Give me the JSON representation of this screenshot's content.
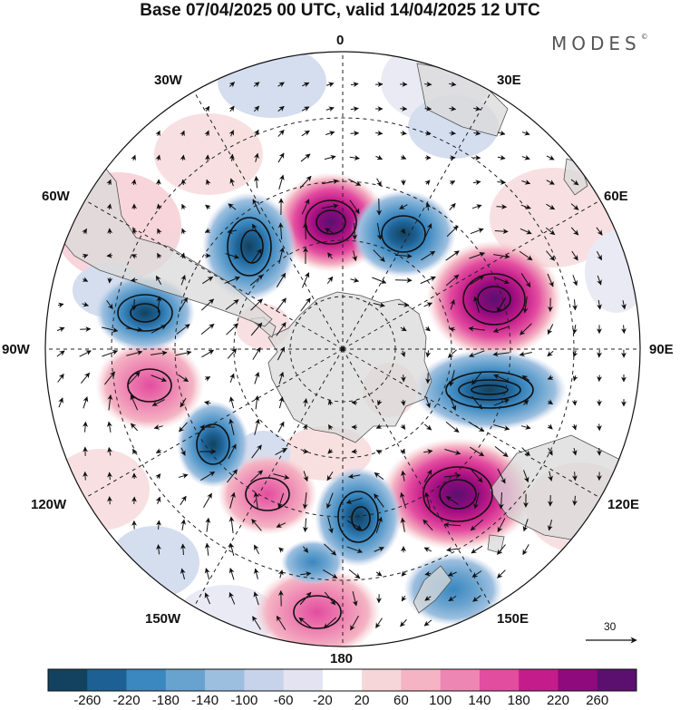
{
  "title": "Base 07/04/2025 00 UTC, valid 14/04/2025 12 UTC",
  "brand": "MODES",
  "brand_mark": "©",
  "longitude_labels": {
    "lon0": "0",
    "lon30e": "30E",
    "lon60e": "60E",
    "lon90e": "90E",
    "lon120e": "120E",
    "lon150e": "150E",
    "lon180": "180",
    "lon150w": "150W",
    "lon120w": "120W",
    "lon90w": "90W",
    "lon60w": "60W",
    "lon30w": "30W"
  },
  "reference_vector": {
    "value": "30"
  },
  "colorbar": {
    "ticks": [
      "-260",
      "-220",
      "-180",
      "-140",
      "-100",
      "-60",
      "-20",
      "20",
      "60",
      "100",
      "140",
      "180",
      "220",
      "260"
    ],
    "colors": [
      "#12425f",
      "#1d6194",
      "#3b87bf",
      "#68a3cf",
      "#9dbfdf",
      "#c7d3ea",
      "#e3e3f1",
      "#ffffff",
      "#f6d6d8",
      "#f4b4c3",
      "#ee86b3",
      "#e34d9f",
      "#c41d8b",
      "#8f0a7c",
      "#5b1070"
    ]
  },
  "colors": {
    "land": "#d8d8d8",
    "graticule": "#222222",
    "arrow": "#111111"
  },
  "map_data": {
    "projection": "south polar stereographic",
    "anomalies": [
      {
        "lon": 0,
        "lat": -55,
        "value": 240
      },
      {
        "lon": 30,
        "lat": -53,
        "value": -200
      },
      {
        "lon": 60,
        "lat": -52,
        "value": 200
      },
      {
        "lon": 100,
        "lat": -52,
        "value": -240
      },
      {
        "lon": 130,
        "lat": -52,
        "value": 200
      },
      {
        "lon": 165,
        "lat": -57,
        "value": -220
      },
      {
        "lon": -160,
        "lat": -52,
        "value": 100
      },
      {
        "lon": -130,
        "lat": -57,
        "value": -180
      },
      {
        "lon": -110,
        "lat": -45,
        "value": 120
      },
      {
        "lon": -80,
        "lat": -45,
        "value": -200
      },
      {
        "lon": -35,
        "lat": -52,
        "value": -200
      }
    ]
  }
}
